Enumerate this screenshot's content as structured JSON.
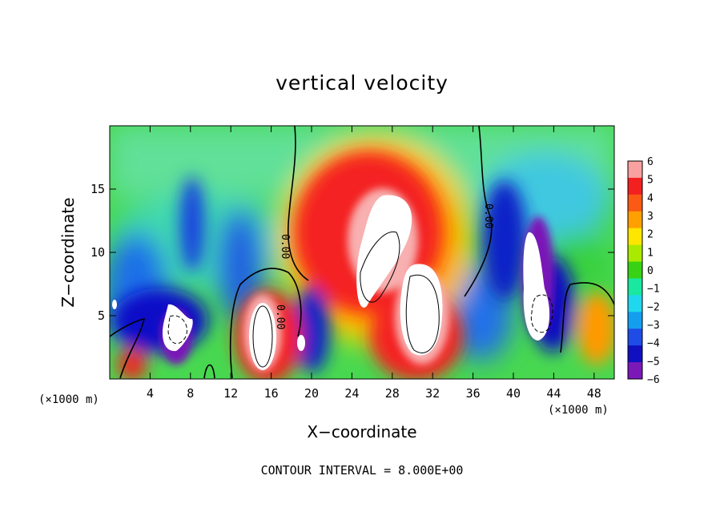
{
  "chart_data": {
    "type": "heatmap",
    "title": "vertical velocity",
    "xlabel": "X−coordinate",
    "ylabel": "Z−coordinate",
    "x_unit_left": "(×1000 m)",
    "x_unit_right": "(×1000 m)",
    "xlim": [
      0,
      50
    ],
    "ylim": [
      0,
      20
    ],
    "xticks": [
      4,
      8,
      12,
      16,
      20,
      24,
      28,
      32,
      36,
      40,
      44,
      48
    ],
    "xtick_labels": [
      "4",
      "8",
      "12",
      "16",
      "20",
      "24",
      "28",
      "32",
      "36",
      "40",
      "44",
      "48"
    ],
    "yticks": [
      5,
      10,
      15
    ],
    "ytick_labels": [
      "5",
      "10",
      "15"
    ],
    "note": "CONTOUR INTERVAL = 8.000E+00",
    "contour_labels": [
      "0.00",
      "0.00",
      "0.00"
    ],
    "colorbar": {
      "levels": [
        6,
        5,
        4,
        3,
        2,
        1,
        0,
        -1,
        -2,
        -3,
        -4,
        -5,
        -6
      ],
      "labels": [
        "6",
        "5",
        "4",
        "3",
        "2",
        "1",
        "0",
        "−1",
        "−2",
        "−3",
        "−4",
        "−5",
        "−6"
      ],
      "colors": [
        "#f9a0a0",
        "#f32020",
        "#fa5a14",
        "#ffa000",
        "#ffe600",
        "#aaea00",
        "#38d214",
        "#18e8a0",
        "#20d8ee",
        "#149ef0",
        "#1f4ce6",
        "#1010c0",
        "#7a18b8"
      ]
    },
    "features": [
      {
        "kind": "updraft-core",
        "x": 14.8,
        "z": 3.6
      },
      {
        "kind": "updraft-core",
        "x": 26.5,
        "z": 10.0
      },
      {
        "kind": "updraft-core",
        "x": 30.5,
        "z": 5.2
      },
      {
        "kind": "updraft-core",
        "x": 42.5,
        "z": 7.0
      },
      {
        "kind": "updraft-core",
        "x": 6.5,
        "z": 3.3
      },
      {
        "kind": "downdraft",
        "x": 10.0,
        "z": 5.5
      },
      {
        "kind": "downdraft",
        "x": 40.0,
        "z": 7.0
      }
    ]
  }
}
